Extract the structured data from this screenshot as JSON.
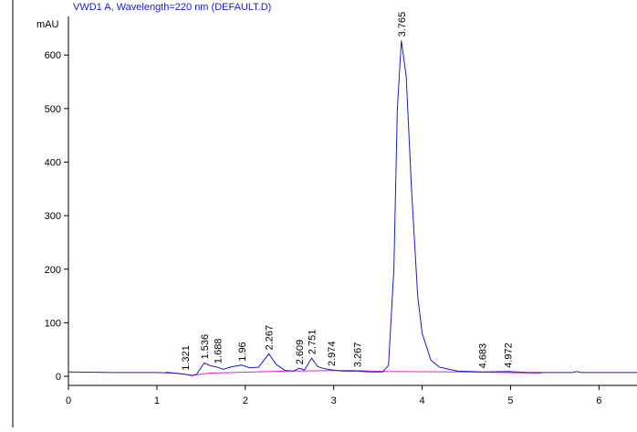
{
  "chart_data": {
    "type": "line",
    "title": "VWD1 A, Wavelength=220 nm (DEFAULT.D)",
    "y_label": "mAU",
    "xlim": [
      0,
      6.43
    ],
    "xticks": [
      0,
      1,
      2,
      3,
      4,
      5,
      6
    ],
    "ylim": [
      -17,
      672
    ],
    "yticks": [
      0,
      100,
      200,
      300,
      400,
      500,
      600
    ],
    "series": [
      {
        "color": "#1a1acc",
        "x": [
          0,
          0.5,
          1.0,
          1.2,
          1.321,
          1.4,
          1.45,
          1.536,
          1.6,
          1.688,
          1.75,
          1.85,
          1.96,
          2.05,
          2.15,
          2.267,
          2.35,
          2.45,
          2.55,
          2.609,
          2.67,
          2.751,
          2.82,
          2.9,
          2.974,
          3.1,
          3.267,
          3.4,
          3.55,
          3.62,
          3.68,
          3.72,
          3.765,
          3.82,
          3.88,
          3.95,
          4.0,
          4.1,
          4.2,
          4.4,
          4.683,
          4.972,
          5.2,
          5.7,
          5.75,
          5.8,
          6.43
        ],
        "values": [
          8,
          7,
          7,
          6,
          4,
          1,
          4,
          25,
          20,
          17,
          13,
          18,
          21,
          16,
          17,
          42,
          22,
          11,
          10,
          15,
          12,
          34,
          18,
          14,
          12,
          10,
          10,
          8,
          8,
          20,
          200,
          500,
          627,
          560,
          350,
          150,
          80,
          30,
          17,
          10,
          8,
          9,
          7,
          7,
          9,
          7,
          7
        ]
      },
      {
        "color": "#e020d0",
        "x": [
          1.1,
          1.4,
          1.6,
          2.5,
          3.2,
          3.6,
          4.5,
          5.35
        ],
        "values": [
          8,
          2,
          6,
          10,
          11,
          9,
          8,
          6
        ]
      }
    ],
    "peaks": [
      1.321,
      1.536,
      1.688,
      1.96,
      2.267,
      2.609,
      2.751,
      2.974,
      3.267,
      3.765,
      4.683,
      4.972
    ]
  }
}
